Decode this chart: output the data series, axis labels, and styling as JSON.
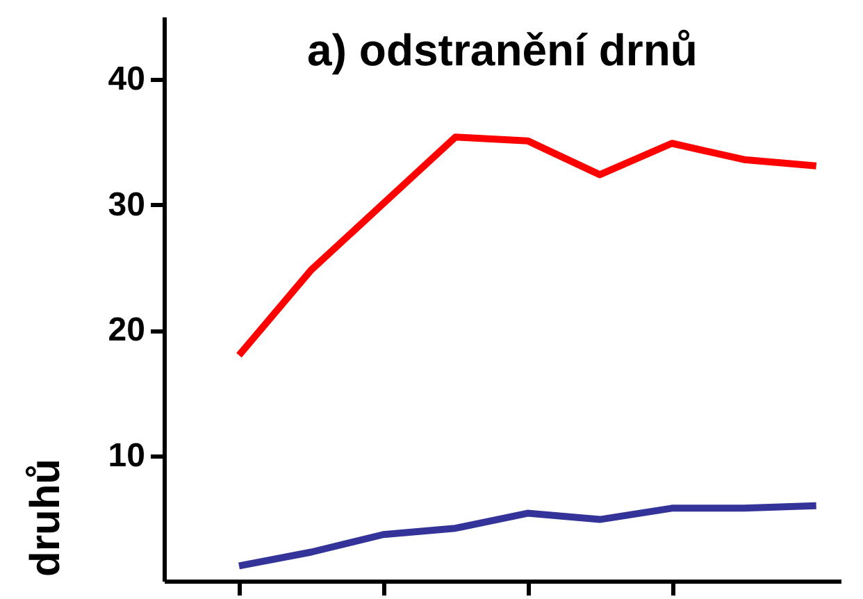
{
  "chart_data": {
    "type": "line",
    "title": "a) odstranění drnů",
    "ylabel": "druhů",
    "categories": [
      null,
      null,
      null,
      null,
      null,
      null,
      null,
      null,
      null
    ],
    "series": [
      {
        "color": "#ff0000",
        "values": [
          18,
          24.8,
          30.1,
          35.4,
          35.1,
          32.4,
          34.9,
          33.6,
          33.1
        ]
      },
      {
        "color": "#333399",
        "values": [
          1.2,
          2.3,
          3.7,
          4.2,
          5.4,
          4.9,
          5.8,
          5.8,
          6.0
        ]
      }
    ],
    "ylim": [
      0,
      45
    ],
    "yticks": [
      10,
      20,
      30,
      40
    ],
    "grid": false,
    "tick_labels": "y",
    "line_style": "solid",
    "marker": "none"
  }
}
